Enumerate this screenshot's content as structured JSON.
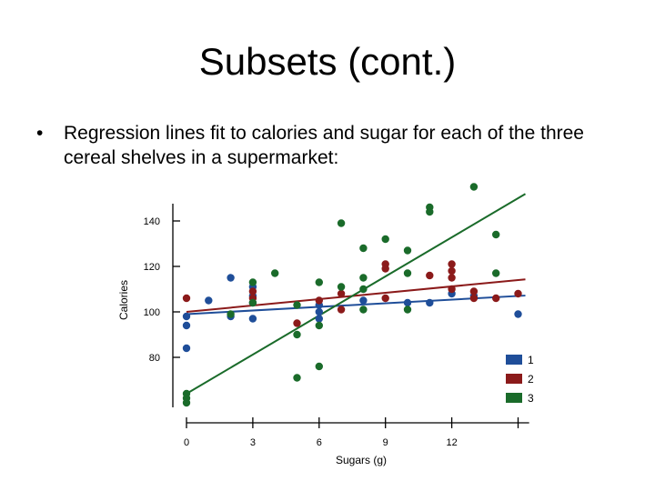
{
  "slide": {
    "title": "Subsets (cont.)",
    "bullet_symbol": "•",
    "bullet_text": "Regression lines fit to calories and sugar for each of the three cereal shelves in a supermarket:"
  },
  "chart_data": {
    "type": "scatter",
    "title": "",
    "xlabel": "Sugars (g)",
    "ylabel": "Calories",
    "xlim": [
      0,
      15
    ],
    "ylim": [
      60,
      150
    ],
    "x_ticks": [
      0,
      3,
      6,
      9,
      12,
      15
    ],
    "x_tick_labels": [
      "0",
      "3",
      "6",
      "9",
      "12",
      ""
    ],
    "y_ticks": [
      80,
      100,
      120,
      140
    ],
    "legend_position": "bottom-right",
    "series": [
      {
        "name": "1",
        "color": "#1f4e99",
        "points": [
          [
            0,
            98
          ],
          [
            0,
            94
          ],
          [
            0,
            84
          ],
          [
            1,
            105
          ],
          [
            2,
            115
          ],
          [
            2,
            98
          ],
          [
            3,
            111
          ],
          [
            3,
            107
          ],
          [
            3,
            104
          ],
          [
            3,
            97
          ],
          [
            6,
            103
          ],
          [
            6,
            100
          ],
          [
            6,
            97
          ],
          [
            8,
            105
          ],
          [
            10,
            104
          ],
          [
            11,
            104
          ],
          [
            12,
            108
          ],
          [
            13,
            107
          ],
          [
            15,
            99
          ]
        ],
        "line": [
          [
            0,
            99
          ],
          [
            15,
            107
          ]
        ]
      },
      {
        "name": "2",
        "color": "#8b1a1a",
        "points": [
          [
            0,
            106
          ],
          [
            3,
            109
          ],
          [
            3,
            106
          ],
          [
            5,
            95
          ],
          [
            6,
            105
          ],
          [
            7,
            101
          ],
          [
            7,
            108
          ],
          [
            9,
            121
          ],
          [
            9,
            119
          ],
          [
            9,
            106
          ],
          [
            11,
            116
          ],
          [
            12,
            121
          ],
          [
            12,
            118
          ],
          [
            12,
            115
          ],
          [
            12,
            110
          ],
          [
            13,
            109
          ],
          [
            13,
            106
          ],
          [
            14,
            106
          ],
          [
            15,
            108
          ]
        ],
        "line": [
          [
            0,
            100
          ],
          [
            15,
            114
          ]
        ]
      },
      {
        "name": "3",
        "color": "#1a6b2a",
        "points": [
          [
            0,
            64
          ],
          [
            0,
            62
          ],
          [
            0,
            60
          ],
          [
            2,
            99
          ],
          [
            3,
            113
          ],
          [
            3,
            104
          ],
          [
            4,
            117
          ],
          [
            5,
            90
          ],
          [
            5,
            71
          ],
          [
            5,
            103
          ],
          [
            6,
            113
          ],
          [
            6,
            94
          ],
          [
            6,
            76
          ],
          [
            7,
            139
          ],
          [
            7,
            111
          ],
          [
            8,
            128
          ],
          [
            8,
            115
          ],
          [
            8,
            110
          ],
          [
            8,
            101
          ],
          [
            9,
            132
          ],
          [
            10,
            127
          ],
          [
            10,
            117
          ],
          [
            10,
            101
          ],
          [
            11,
            146
          ],
          [
            11,
            144
          ],
          [
            13,
            155
          ],
          [
            14,
            134
          ],
          [
            14,
            117
          ]
        ],
        "line": [
          [
            0,
            64
          ],
          [
            15,
            150
          ]
        ]
      }
    ]
  }
}
